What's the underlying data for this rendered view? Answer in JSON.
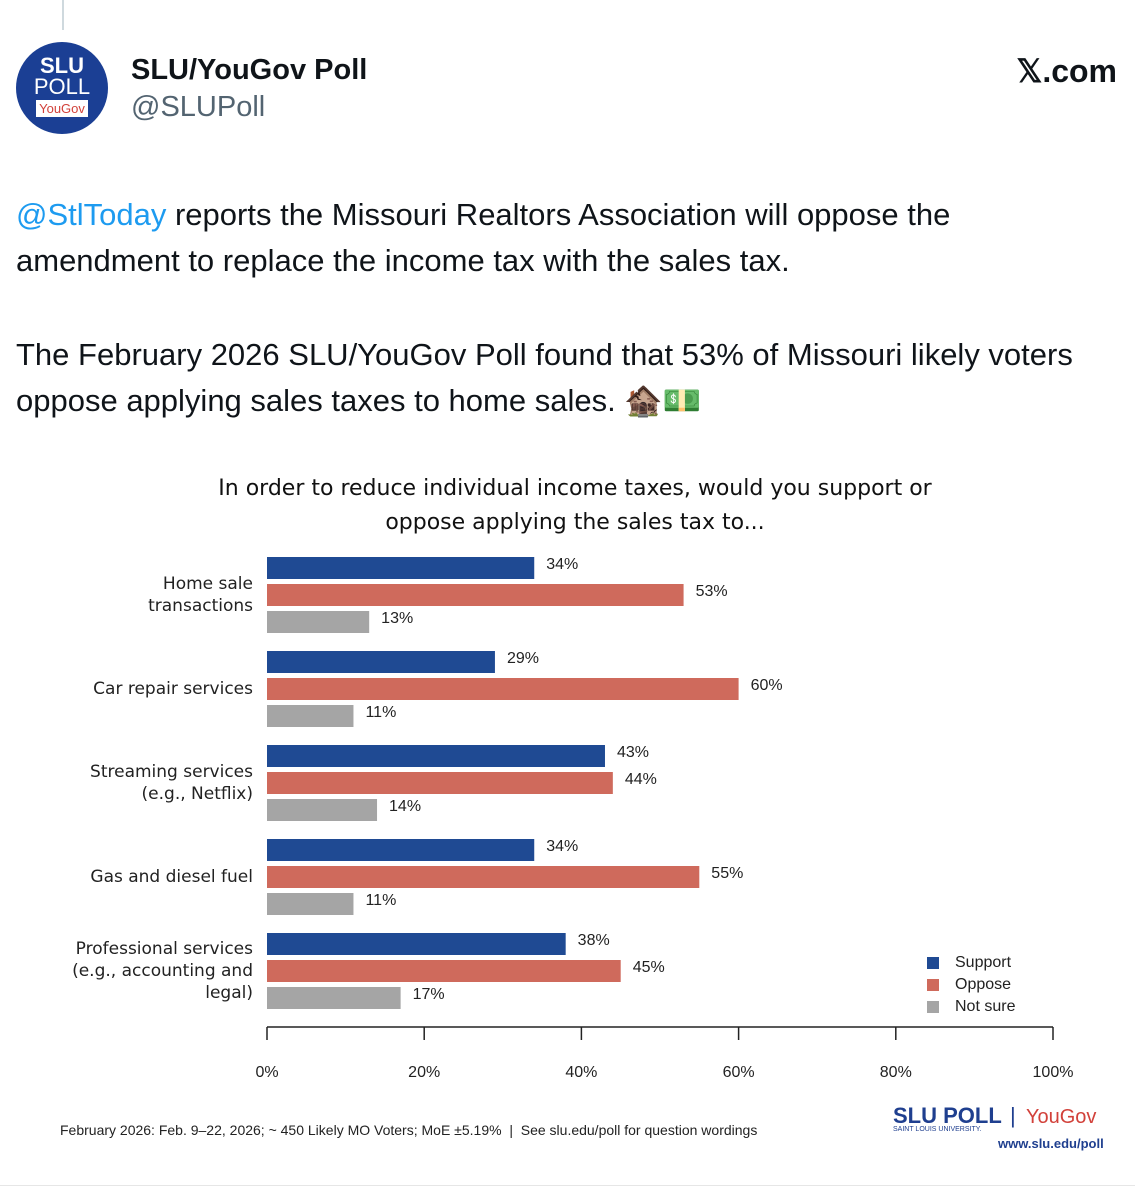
{
  "tweet": {
    "avatar": [
      "SLU",
      "POLL",
      "YouGov"
    ],
    "name": "SLU/YouGov Poll",
    "handle": "@SLUPoll",
    "site": "𝕏.com",
    "mention": "@StlToday",
    "text1": " reports the Missouri Realtors Association will oppose the amendment to replace the income tax with the sales tax.",
    "text2": "The February 2026 SLU/YouGov Poll found that 53% of Missouri likely voters oppose applying sales taxes to home sales. 🏚️💵"
  },
  "chart_data": {
    "type": "hbar",
    "title": "In order to reduce individual income taxes, would you support or oppose applying the sales tax to...",
    "categories": [
      "Home sale transactions",
      "Car repair services",
      "Streaming services (e.g., Netflix)",
      "Gas and diesel fuel",
      "Professional services (e.g., accounting and legal)"
    ],
    "series": [
      {
        "name": "Support",
        "color": "#1f4a93",
        "values": [
          34,
          29,
          43,
          34,
          38
        ],
        "value_labels": [
          "34%",
          "29%",
          "43%",
          "34%",
          "38%"
        ]
      },
      {
        "name": "Oppose",
        "color": "#cf6a5c",
        "values": [
          53,
          60,
          44,
          55,
          45
        ],
        "value_labels": [
          "53%",
          "60%",
          "44%",
          "55%",
          "45%"
        ]
      },
      {
        "name": "Not sure",
        "color": "#a5a5a5",
        "values": [
          13,
          11,
          14,
          11,
          17
        ],
        "value_labels": [
          "13%",
          "11%",
          "14%",
          "11%",
          "17%"
        ]
      }
    ],
    "xlim": [
      0,
      100
    ],
    "xticks": [
      {
        "value": 0,
        "label": "0%"
      },
      {
        "value": 20,
        "label": "20%"
      },
      {
        "value": 40,
        "label": "40%"
      },
      {
        "value": 60,
        "label": "60%"
      },
      {
        "value": 80,
        "label": "80%"
      },
      {
        "value": 100,
        "label": "100%"
      }
    ],
    "legend": "bottom-right",
    "note": "February 2026: Feb. 9–22, 2026; ~ 450 Likely MO Voters; MoE ±5.19%  |  See slu.edu/poll for question wordings"
  },
  "logo": {
    "slu": "SLU POLL",
    "university": "SAINT LOUIS UNIVERSITY.",
    "sep": "|",
    "yougov": "YouGov",
    "url": "www.slu.edu/poll"
  }
}
